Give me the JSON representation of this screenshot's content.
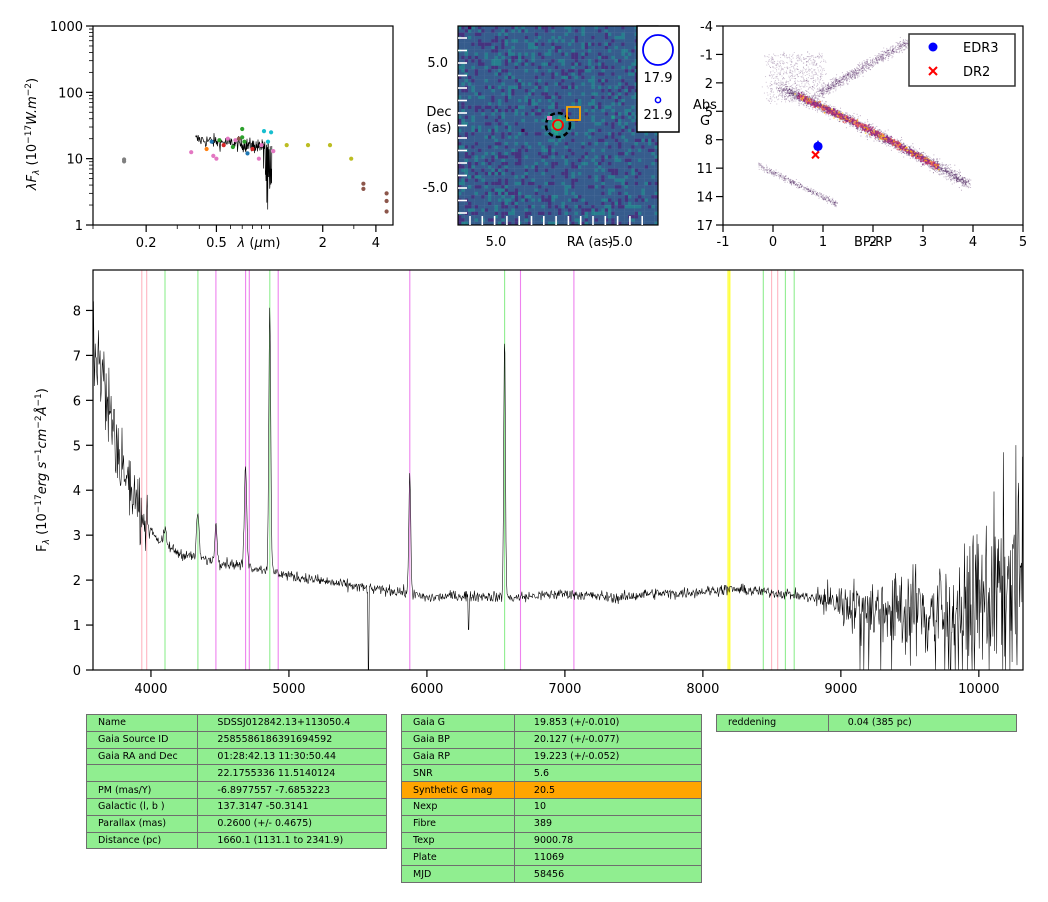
{
  "chart_data": [
    {
      "type": "scatter",
      "ylabel": "λF_λ (10^-17 W.m^-2)",
      "xlabel": "λ (μm)",
      "xscale": "log",
      "yscale": "log",
      "xlim": [
        0.1,
        5.0
      ],
      "ylim": [
        1,
        1000
      ],
      "x_ticks": [
        "0.2",
        "0.5",
        "2",
        "4"
      ],
      "y_ticks": [
        "1",
        "10",
        "100",
        "1000"
      ],
      "points": [
        {
          "x": 0.15,
          "y": 9.1,
          "color": "#7f7f7f"
        },
        {
          "x": 0.15,
          "y": 9.7,
          "color": "#7f7f7f"
        },
        {
          "x": 0.36,
          "y": 12.5,
          "color": "#e377c2"
        },
        {
          "x": 0.44,
          "y": 14.0,
          "color": "#ff7f0e"
        },
        {
          "x": 0.47,
          "y": 18.0,
          "color": "#1f77b4"
        },
        {
          "x": 0.48,
          "y": 11.0,
          "color": "#e377c2"
        },
        {
          "x": 0.5,
          "y": 10.0,
          "color": "#e377c2"
        },
        {
          "x": 0.52,
          "y": 19.0,
          "color": "#2ca02c"
        },
        {
          "x": 0.55,
          "y": 16.0,
          "color": "#d62728"
        },
        {
          "x": 0.58,
          "y": 20.0,
          "color": "#e377c2"
        },
        {
          "x": 0.62,
          "y": 15.0,
          "color": "#2ca02c"
        },
        {
          "x": 0.64,
          "y": 19.0,
          "color": "#e377c2"
        },
        {
          "x": 0.67,
          "y": 20.0,
          "color": "#8c564b"
        },
        {
          "x": 0.7,
          "y": 28.0,
          "color": "#2ca02c"
        },
        {
          "x": 0.7,
          "y": 21.0,
          "color": "#2ca02c"
        },
        {
          "x": 0.72,
          "y": 18.0,
          "color": "#2ca02c"
        },
        {
          "x": 0.75,
          "y": 12.0,
          "color": "#1f77b4"
        },
        {
          "x": 0.8,
          "y": 14.0,
          "color": "#d62728"
        },
        {
          "x": 0.87,
          "y": 10.0,
          "color": "#e377c2"
        },
        {
          "x": 0.9,
          "y": 16.0,
          "color": "#e377c2"
        },
        {
          "x": 0.93,
          "y": 26.0,
          "color": "#17becf"
        },
        {
          "x": 0.98,
          "y": 18.0,
          "color": "#17becf"
        },
        {
          "x": 1.02,
          "y": 25.0,
          "color": "#17becf"
        },
        {
          "x": 1.05,
          "y": 13.0,
          "color": "#e377c2"
        },
        {
          "x": 1.25,
          "y": 16.0,
          "color": "#bcbd22"
        },
        {
          "x": 1.65,
          "y": 16.0,
          "color": "#bcbd22"
        },
        {
          "x": 2.2,
          "y": 16.0,
          "color": "#bcbd22"
        },
        {
          "x": 2.9,
          "y": 10.0,
          "color": "#bcbd22"
        },
        {
          "x": 3.4,
          "y": 4.2,
          "color": "#8c564b"
        },
        {
          "x": 3.4,
          "y": 3.5,
          "color": "#8c564b"
        },
        {
          "x": 4.6,
          "y": 3.0,
          "color": "#8c564b"
        },
        {
          "x": 4.6,
          "y": 2.3,
          "color": "#8c564b"
        },
        {
          "x": 4.6,
          "y": 1.6,
          "color": "#8c564b"
        }
      ]
    },
    {
      "type": "heatmap",
      "xlabel": "RA (as)",
      "ylabel": "Dec (as)",
      "x_ticks": [
        "5.0",
        "-5.0"
      ],
      "y_ticks": [
        "5.0",
        "-5.0"
      ],
      "legend": [
        {
          "label": "17.9"
        },
        {
          "label": "21.9"
        }
      ]
    },
    {
      "type": "scatter",
      "xlabel": "BP-RP",
      "ylabel": "Abs G",
      "xlim": [
        -1,
        5
      ],
      "ylim": [
        17,
        -4
      ],
      "x_ticks": [
        "-1",
        "0",
        "1",
        "2",
        "3",
        "4",
        "5"
      ],
      "y_ticks": [
        "-4",
        "-1",
        "2",
        "5",
        "8",
        "11",
        "14",
        "17"
      ],
      "legend_position": "top-right",
      "series": [
        {
          "name": "EDR3",
          "x": [
            0.9
          ],
          "y": [
            8.7
          ],
          "color": "#0000ff",
          "marker": "circle"
        },
        {
          "name": "DR2",
          "x": [
            0.85
          ],
          "y": [
            9.6
          ],
          "color": "#ff0000",
          "marker": "x"
        }
      ]
    },
    {
      "type": "line",
      "ylabel": "F_λ (10^-17 erg s^-1 cm^-2 Å^-1)",
      "xlim": [
        3580,
        10320
      ],
      "ylim": [
        0,
        8.9
      ],
      "x_ticks": [
        "4000",
        "5000",
        "6000",
        "7000",
        "8000",
        "9000",
        "10000"
      ],
      "y_ticks": [
        "0",
        "1",
        "2",
        "3",
        "4",
        "5",
        "6",
        "7",
        "8"
      ],
      "continuum": [
        [
          3580,
          7.5
        ],
        [
          3650,
          6.5
        ],
        [
          3750,
          5.0
        ],
        [
          3850,
          4.0
        ],
        [
          3950,
          3.4
        ],
        [
          4050,
          2.9
        ],
        [
          4200,
          2.6
        ],
        [
          4400,
          2.45
        ],
        [
          4600,
          2.35
        ],
        [
          4800,
          2.25
        ],
        [
          5000,
          2.1
        ],
        [
          5200,
          2.0
        ],
        [
          5400,
          1.9
        ],
        [
          5600,
          1.8
        ],
        [
          5800,
          1.75
        ],
        [
          6000,
          1.6
        ],
        [
          6200,
          1.65
        ],
        [
          6400,
          1.65
        ],
        [
          6600,
          1.6
        ],
        [
          6800,
          1.65
        ],
        [
          7000,
          1.7
        ],
        [
          7200,
          1.65
        ],
        [
          7400,
          1.6
        ],
        [
          7600,
          1.7
        ],
        [
          7800,
          1.7
        ],
        [
          8000,
          1.75
        ],
        [
          8200,
          1.8
        ],
        [
          8400,
          1.75
        ],
        [
          8600,
          1.7
        ],
        [
          8800,
          1.6
        ],
        [
          9000,
          1.5
        ],
        [
          9200,
          1.4
        ],
        [
          9400,
          1.35
        ],
        [
          9600,
          1.3
        ],
        [
          9800,
          1.3
        ],
        [
          10000,
          1.5
        ],
        [
          10200,
          1.8
        ],
        [
          10320,
          2.2
        ]
      ],
      "emission_lines": [
        {
          "x": 3970,
          "peak": 3.2
        },
        {
          "x": 4102,
          "peak": 3.1
        },
        {
          "x": 4340,
          "peak": 3.5
        },
        {
          "x": 4471,
          "peak": 3.2
        },
        {
          "x": 4686,
          "peak": 4.5
        },
        {
          "x": 4861,
          "peak": 8.1
        },
        {
          "x": 5876,
          "peak": 4.4
        },
        {
          "x": 6563,
          "peak": 7.5
        }
      ],
      "reference_lines": [
        {
          "x": 3934,
          "color": "#ffb6c1"
        },
        {
          "x": 3969,
          "color": "#ffb6c1"
        },
        {
          "x": 4102,
          "color": "#90ee90"
        },
        {
          "x": 4340,
          "color": "#90ee90"
        },
        {
          "x": 4471,
          "color": "#ee82ee"
        },
        {
          "x": 4686,
          "color": "#ee82ee"
        },
        {
          "x": 4713,
          "color": "#ee82ee"
        },
        {
          "x": 4861,
          "color": "#90ee90"
        },
        {
          "x": 4922,
          "color": "#ee82ee"
        },
        {
          "x": 5876,
          "color": "#ee82ee"
        },
        {
          "x": 6563,
          "color": "#90ee90"
        },
        {
          "x": 6678,
          "color": "#ee82ee"
        },
        {
          "x": 7065,
          "color": "#ee82ee"
        },
        {
          "x": 8183,
          "color": "#ffff00"
        },
        {
          "x": 8195,
          "color": "#ffff00"
        },
        {
          "x": 8438,
          "color": "#90ee90"
        },
        {
          "x": 8498,
          "color": "#ffb6c1"
        },
        {
          "x": 8542,
          "color": "#ffb6c1"
        },
        {
          "x": 8598,
          "color": "#90ee90"
        },
        {
          "x": 8662,
          "color": "#90ee90"
        }
      ]
    }
  ],
  "tables": {
    "astrometry": [
      [
        "Name",
        "SDSSJ012842.13+113050.4"
      ],
      [
        "Gaia Source ID",
        "2585586186391694592"
      ],
      [
        "Gaia RA and Dec",
        "01:28:42.13    11:30:50.44"
      ],
      [
        "",
        "22.1755336    11.5140124"
      ],
      [
        "PM (mas/Y)",
        "-6.8977557    -7.6853223"
      ],
      [
        "Galactic (l, b )",
        "137.3147    -50.3141"
      ],
      [
        "Parallax (mas)",
        "0.2600 (+/- 0.4675)"
      ],
      [
        "Distance (pc)",
        "1660.1 (1131.1 to 2341.9)"
      ]
    ],
    "photometry": [
      [
        "Gaia G",
        "19.853 (+/-0.010)"
      ],
      [
        "Gaia BP",
        "20.127 (+/-0.077)"
      ],
      [
        "Gaia RP",
        "19.223 (+/-0.052)"
      ],
      [
        "SNR",
        "5.6"
      ],
      [
        "Synthetic G mag",
        "20.5"
      ],
      [
        "Nexp",
        "10"
      ],
      [
        "Fibre",
        "389"
      ],
      [
        "Texp",
        "9000.78"
      ],
      [
        "Plate",
        "11069"
      ],
      [
        "MJD",
        "58456"
      ]
    ],
    "extinction": [
      [
        "reddening",
        "0.04 (385 pc)"
      ]
    ]
  }
}
